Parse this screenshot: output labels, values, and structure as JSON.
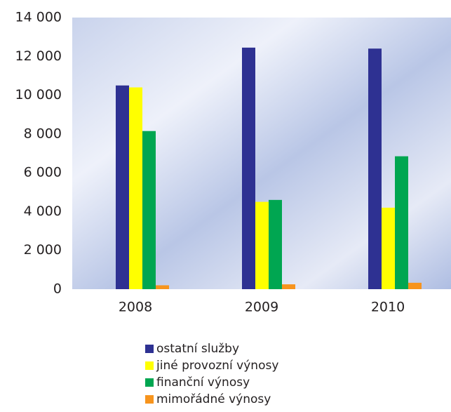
{
  "chart_data": {
    "type": "bar",
    "categories": [
      "2008",
      "2009",
      "2010"
    ],
    "series": [
      {
        "name": "ostatní služby",
        "color": "#2e3192",
        "values": [
          10500,
          12450,
          12400
        ]
      },
      {
        "name": "jiné provozní výnosy",
        "color": "#ffff00",
        "values": [
          10400,
          4500,
          4200
        ]
      },
      {
        "name": "finanční výnosy",
        "color": "#00a651",
        "values": [
          8150,
          4600,
          6850
        ]
      },
      {
        "name": "mimořádné výnosy",
        "color": "#f7941d",
        "values": [
          200,
          250,
          330
        ]
      }
    ],
    "ylim": [
      0,
      14000
    ],
    "yticks": [
      0,
      {
        "value": 2000,
        "label": "2 000"
      },
      {
        "value": 4000,
        "label": "4 000"
      },
      {
        "value": 6000,
        "label": "6 000"
      },
      {
        "value": 8000,
        "label": "8 000"
      },
      {
        "value": 10000,
        "label": "10 000"
      },
      {
        "value": 12000,
        "label": "12 000"
      },
      {
        "value": 14000,
        "label": "14 000"
      }
    ],
    "grid": false
  }
}
